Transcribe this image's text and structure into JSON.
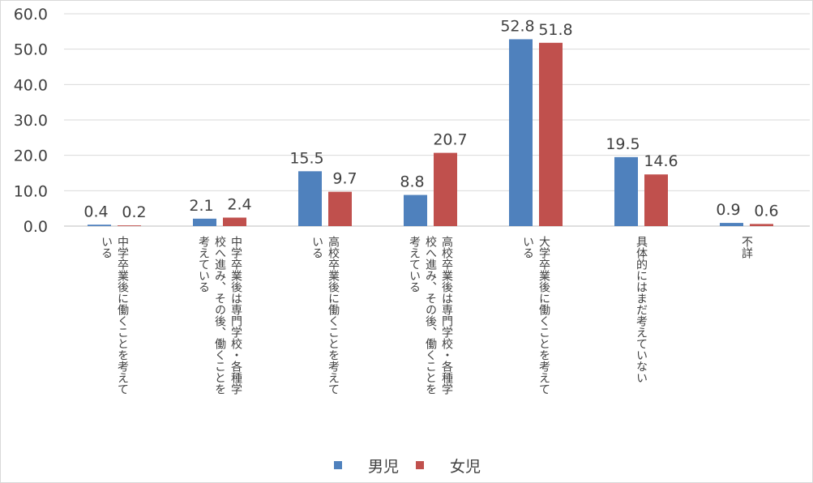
{
  "chart_data": {
    "type": "bar",
    "title": "",
    "xlabel": "",
    "ylabel": "",
    "ylim": [
      0,
      60
    ],
    "ytick_labels": [
      "0.0",
      "10.0",
      "20.0",
      "30.0",
      "40.0",
      "50.0",
      "60.0"
    ],
    "grid": true,
    "legend_position": "bottom",
    "categories": [
      {
        "lines": [
          "中学卒業後に働くことを考えて",
          "いる"
        ]
      },
      {
        "lines": [
          "中学卒業後は専門学校・各種学",
          "校へ進み、その後、働くことを",
          "考えている"
        ]
      },
      {
        "lines": [
          "高校卒業後に働くことを考えて",
          "いる"
        ]
      },
      {
        "lines": [
          "高校卒業後は専門学校・各種学",
          "校へ進み、その後、働くことを",
          "考えている"
        ]
      },
      {
        "lines": [
          "大学卒業後に働くことを考えて",
          "いる"
        ]
      },
      {
        "lines": [
          "具体的にはまだ考えていない"
        ]
      },
      {
        "lines": [
          "不詳"
        ]
      }
    ],
    "series": [
      {
        "name": "男児",
        "color": "#4f81bd",
        "values": [
          0.4,
          2.1,
          15.5,
          8.8,
          52.8,
          19.5,
          0.9
        ],
        "labels": [
          "0.4",
          "2.1",
          "15.5",
          "8.8",
          "52.8",
          "19.5",
          "0.9"
        ]
      },
      {
        "name": "女児",
        "color": "#c0504d",
        "values": [
          0.2,
          2.4,
          9.7,
          20.7,
          51.8,
          14.6,
          0.6
        ],
        "labels": [
          "0.2",
          "2.4",
          "9.7",
          "20.7",
          "51.8",
          "14.6",
          "0.6"
        ]
      }
    ]
  }
}
